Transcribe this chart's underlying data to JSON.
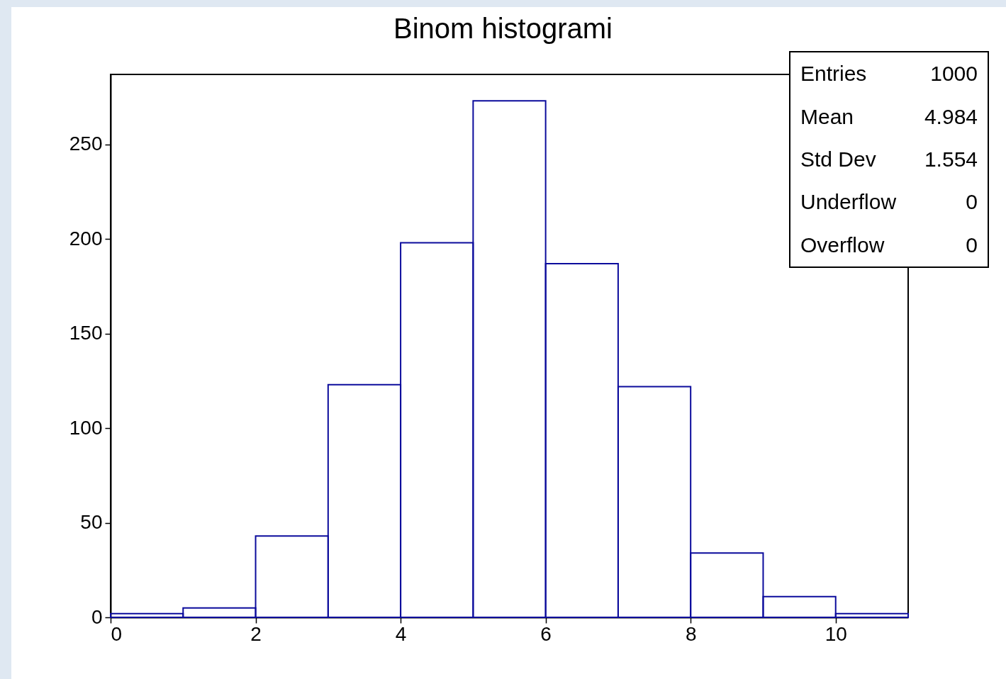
{
  "chart_data": {
    "type": "histogram",
    "title": "Binom histogrami",
    "bins": [
      0,
      1,
      2,
      3,
      4,
      5,
      6,
      7,
      8,
      9,
      10,
      11
    ],
    "values": [
      2,
      5,
      43,
      123,
      198,
      273,
      187,
      122,
      34,
      11,
      2
    ],
    "color": "#0b0b9c",
    "xlim": [
      0,
      11
    ],
    "xticks": [
      0,
      2,
      4,
      6,
      8,
      10
    ],
    "ylim": [
      0,
      287
    ],
    "yticks": [
      0,
      50,
      100,
      150,
      200,
      250
    ],
    "grid": false,
    "annotations": [
      "Entries",
      "1000",
      "Mean",
      "4.984",
      "Std Dev",
      "1.554",
      "Underflow",
      "0",
      "Overflow",
      "0"
    ]
  }
}
